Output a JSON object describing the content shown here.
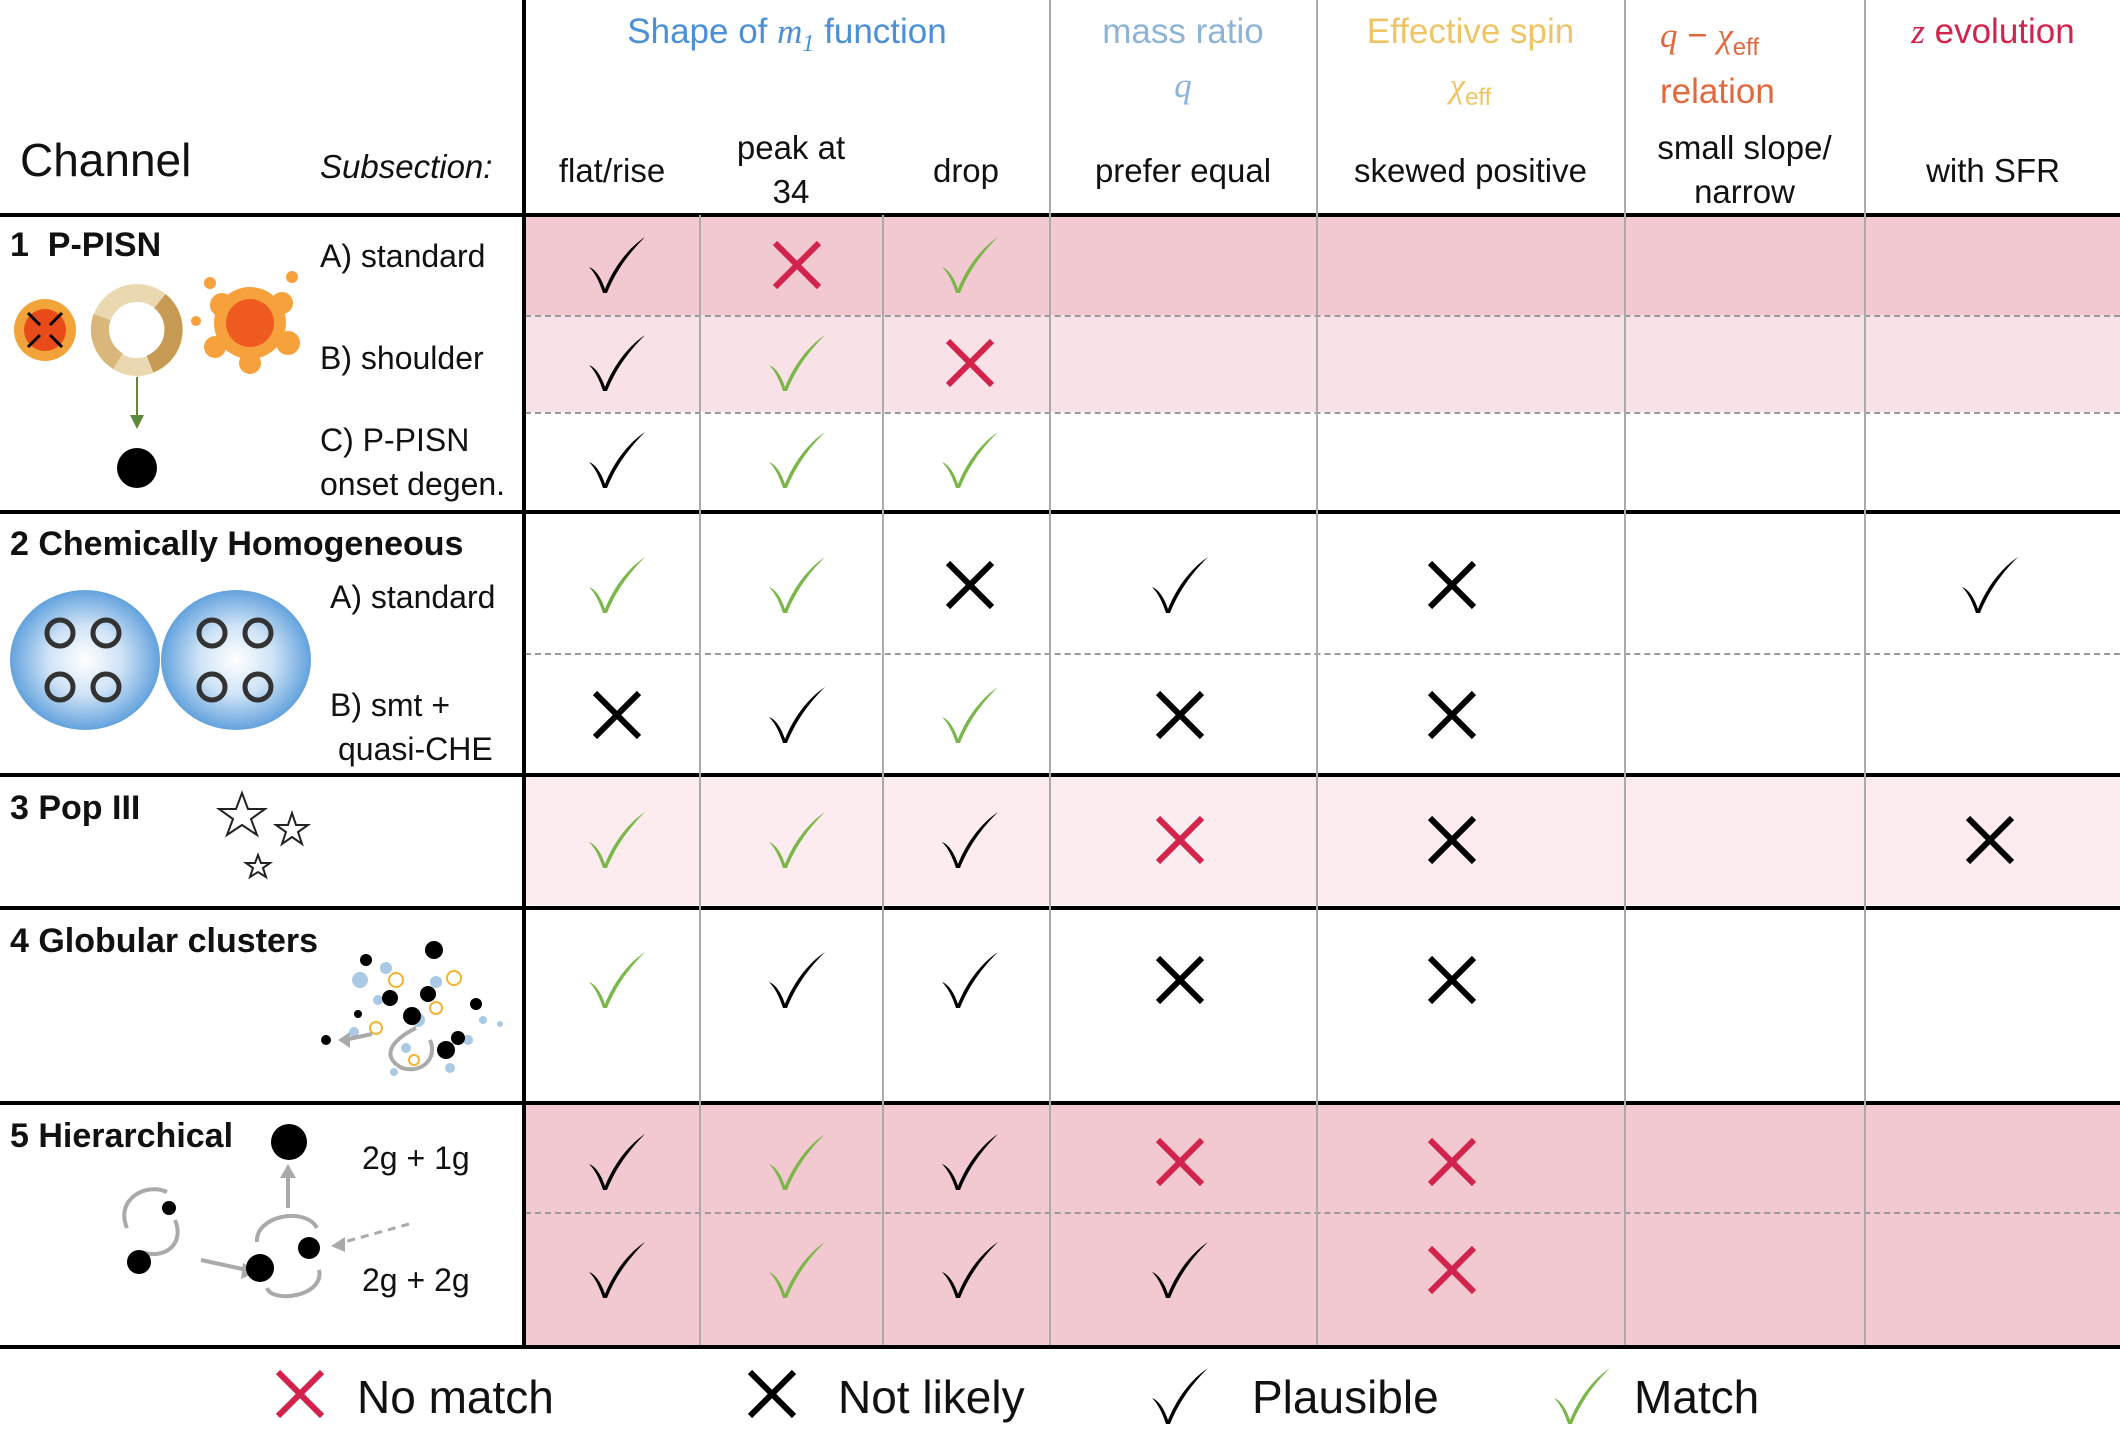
{
  "colors": {
    "no_match": "#d1234b",
    "not_likely": "#000000",
    "plausible": "#000000",
    "match": "#7ab648",
    "band_dark": "#f2c8d1",
    "band_light": "#f9e4e8",
    "band_lightest": "#fcecef",
    "m1_header": "#4a90d9",
    "q_header": "#8db4d8",
    "spin_header": "#efc467",
    "qchi_header": "#e1693f",
    "z_header": "#d1234b"
  },
  "header": {
    "channel": "Channel",
    "subsection": "Subsection:",
    "m1": {
      "pre": "Shape of ",
      "sym": "m",
      "sub": "1",
      "post": " function"
    },
    "q": {
      "line1": "mass ratio",
      "sym": "q"
    },
    "spin": {
      "line1": "Effective spin",
      "sym": "χ",
      "sub": "eff"
    },
    "qchi": {
      "sym1": "q",
      "minus": " − ",
      "sym2": "χ",
      "sub": "eff",
      "line2": "relation"
    },
    "z": {
      "sym": "z",
      "post": " evolution"
    }
  },
  "criteria": {
    "flat_rise": "flat/rise",
    "peak_l1": "peak at",
    "peak_l2": "34",
    "drop": "drop",
    "prefer_equal": "prefer equal",
    "skewed_positive": "skewed positive",
    "slope_l1": "small slope/",
    "slope_l2": "narrow",
    "with_sfr": "with SFR"
  },
  "channels": {
    "ppisn": "1  P-PISN",
    "che": "2 Chemically Homogeneous",
    "pop3": "3 Pop III",
    "gc": "4 Globular clusters",
    "hier": "5 Hierarchical"
  },
  "subsections": {
    "ppisn_a": "A) standard",
    "ppisn_b": "B) shoulder",
    "ppisn_c1": "C) P-PISN",
    "ppisn_c2": "onset degen.",
    "che_a": "A) standard",
    "che_b1": "B) smt +",
    "che_b2": "quasi-CHE",
    "hier_a": "2g + 1g",
    "hier_b": "2g + 2g"
  },
  "grid": {
    "columns": [
      "flat/rise",
      "peak at 34",
      "drop",
      "prefer equal",
      "skewed positive",
      "small slope/narrow",
      "with SFR"
    ],
    "rows": [
      {
        "row": "1A P-PISN standard",
        "marks": [
          "plausible",
          "no_match",
          "match",
          "",
          "",
          "",
          ""
        ]
      },
      {
        "row": "1B P-PISN shoulder",
        "marks": [
          "plausible",
          "match",
          "no_match",
          "",
          "",
          "",
          ""
        ]
      },
      {
        "row": "1C P-PISN onset degen.",
        "marks": [
          "plausible",
          "match",
          "match",
          "",
          "",
          "",
          ""
        ]
      },
      {
        "row": "2A CHE standard",
        "marks": [
          "match",
          "match",
          "not_likely",
          "plausible",
          "not_likely",
          "",
          "plausible"
        ]
      },
      {
        "row": "2B CHE smt + quasi-CHE",
        "marks": [
          "not_likely",
          "plausible",
          "match",
          "not_likely",
          "not_likely",
          "",
          ""
        ]
      },
      {
        "row": "3 Pop III",
        "marks": [
          "match",
          "match",
          "plausible",
          "no_match",
          "not_likely",
          "",
          "not_likely"
        ]
      },
      {
        "row": "4 Globular clusters",
        "marks": [
          "match",
          "plausible",
          "plausible",
          "not_likely",
          "not_likely",
          "",
          ""
        ]
      },
      {
        "row": "5 Hierarchical 2g+1g",
        "marks": [
          "plausible",
          "match",
          "plausible",
          "no_match",
          "no_match",
          "",
          ""
        ]
      },
      {
        "row": "5 Hierarchical 2g+2g",
        "marks": [
          "plausible",
          "match",
          "plausible",
          "plausible",
          "no_match",
          "",
          ""
        ]
      }
    ]
  },
  "legend": {
    "no_match": "No match",
    "not_likely": "Not likely",
    "plausible": "Plausible",
    "match": "Match"
  },
  "icons": {
    "ppisn": "pulsational-pair-instability-icon",
    "che": "chemically-homogeneous-binary-icon",
    "pop3": "stars-icon",
    "gc": "globular-cluster-icon",
    "hier": "hierarchical-merger-icon"
  }
}
